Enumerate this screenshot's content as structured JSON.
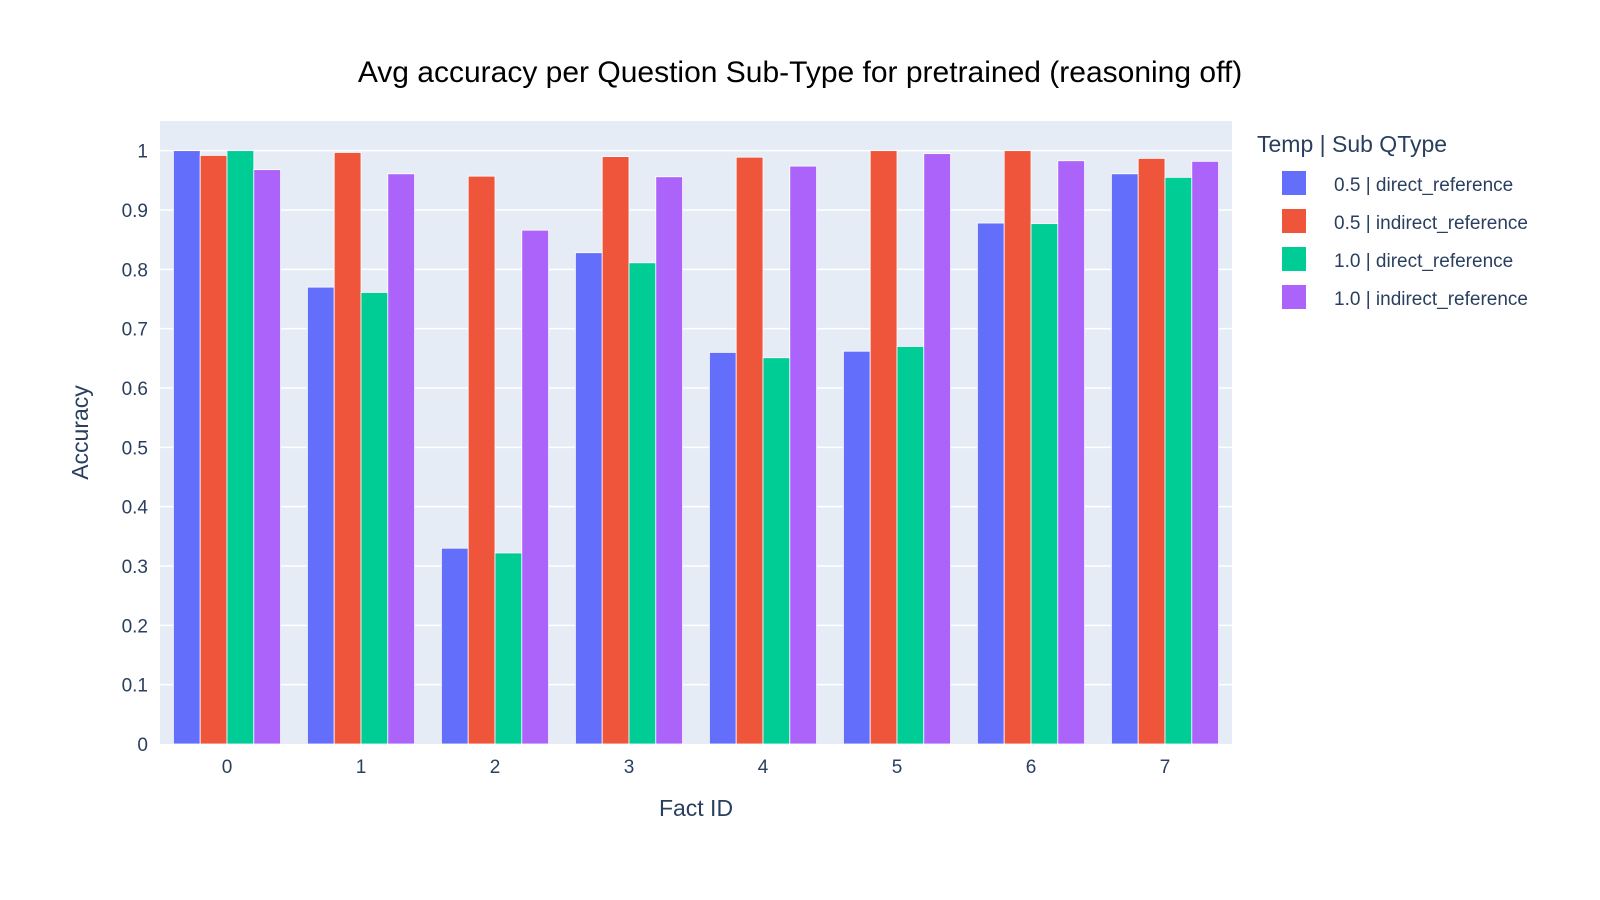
{
  "chart_data": {
    "type": "bar",
    "title": "Avg accuracy per Question Sub-Type for pretrained (reasoning off)",
    "xlabel": "Fact ID",
    "ylabel": "Accuracy",
    "categories": [
      "0",
      "1",
      "2",
      "3",
      "4",
      "5",
      "6",
      "7"
    ],
    "yticks": [
      "0",
      "0.1",
      "0.2",
      "0.3",
      "0.4",
      "0.5",
      "0.6",
      "0.7",
      "0.8",
      "0.9",
      "1"
    ],
    "ylim": [
      0,
      1.05
    ],
    "grid": true,
    "legend_title": "Temp | Sub QType",
    "legend_position": "right",
    "plot_background": "#e5ecf6",
    "series": [
      {
        "name": "0.5 | direct_reference",
        "color": "#636efa",
        "values": [
          1.0,
          0.77,
          0.33,
          0.828,
          0.66,
          0.662,
          0.878,
          0.961
        ]
      },
      {
        "name": "0.5 | indirect_reference",
        "color": "#ef553b",
        "values": [
          0.992,
          0.997,
          0.957,
          0.99,
          0.989,
          1.0,
          1.0,
          0.987
        ]
      },
      {
        "name": "1.0 | direct_reference",
        "color": "#00cc96",
        "values": [
          1.0,
          0.761,
          0.322,
          0.811,
          0.651,
          0.67,
          0.877,
          0.955
        ]
      },
      {
        "name": "1.0 | indirect_reference",
        "color": "#ab63fa",
        "values": [
          0.968,
          0.961,
          0.866,
          0.956,
          0.974,
          0.995,
          0.983,
          0.982
        ]
      }
    ]
  }
}
